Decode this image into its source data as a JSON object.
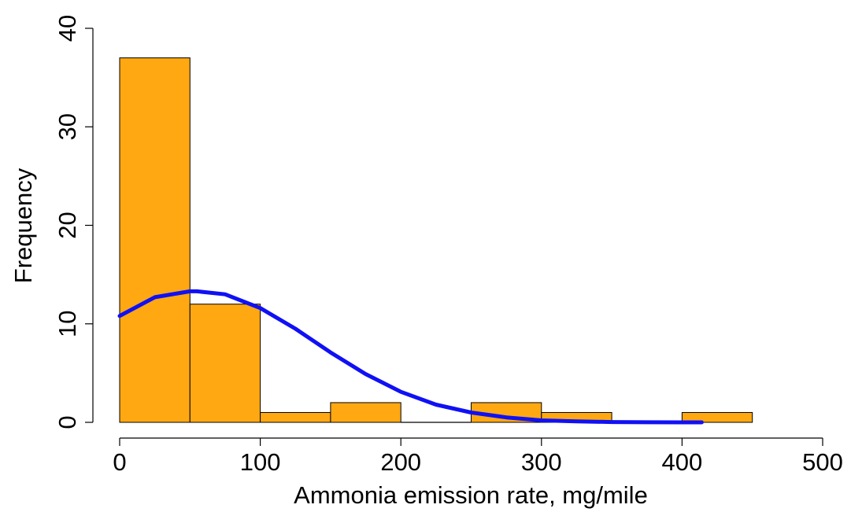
{
  "chart_data": {
    "type": "bar",
    "xlabel": "Ammonia emission rate, mg/mile",
    "ylabel": "Frequency",
    "xlim": [
      0,
      500
    ],
    "ylim": [
      0,
      40
    ],
    "x_ticks": [
      0,
      100,
      200,
      300,
      400,
      500
    ],
    "y_ticks": [
      0,
      10,
      20,
      30,
      40
    ],
    "bins": [
      {
        "from": 0,
        "to": 50,
        "count": 37
      },
      {
        "from": 50,
        "to": 100,
        "count": 12
      },
      {
        "from": 100,
        "to": 150,
        "count": 1
      },
      {
        "from": 150,
        "to": 200,
        "count": 2
      },
      {
        "from": 200,
        "to": 250,
        "count": 0
      },
      {
        "from": 250,
        "to": 300,
        "count": 2
      },
      {
        "from": 300,
        "to": 350,
        "count": 1
      },
      {
        "from": 350,
        "to": 400,
        "count": 0
      },
      {
        "from": 400,
        "to": 450,
        "count": 1
      }
    ],
    "fitted_curve": {
      "x": [
        0,
        25,
        50,
        55,
        75,
        100,
        125,
        150,
        175,
        200,
        225,
        250,
        275,
        300,
        325,
        350,
        375,
        400,
        414
      ],
      "y": [
        10.8,
        12.7,
        13.3,
        13.3,
        13.0,
        11.6,
        9.5,
        7.1,
        4.9,
        3.1,
        1.8,
        1.0,
        0.5,
        0.2,
        0.1,
        0.03,
        0.01,
        0.0,
        0.0
      ]
    },
    "grid": false,
    "colors": {
      "bar_fill": "#FFA812",
      "bar_stroke": "#000000",
      "curve": "#1010F5"
    }
  }
}
